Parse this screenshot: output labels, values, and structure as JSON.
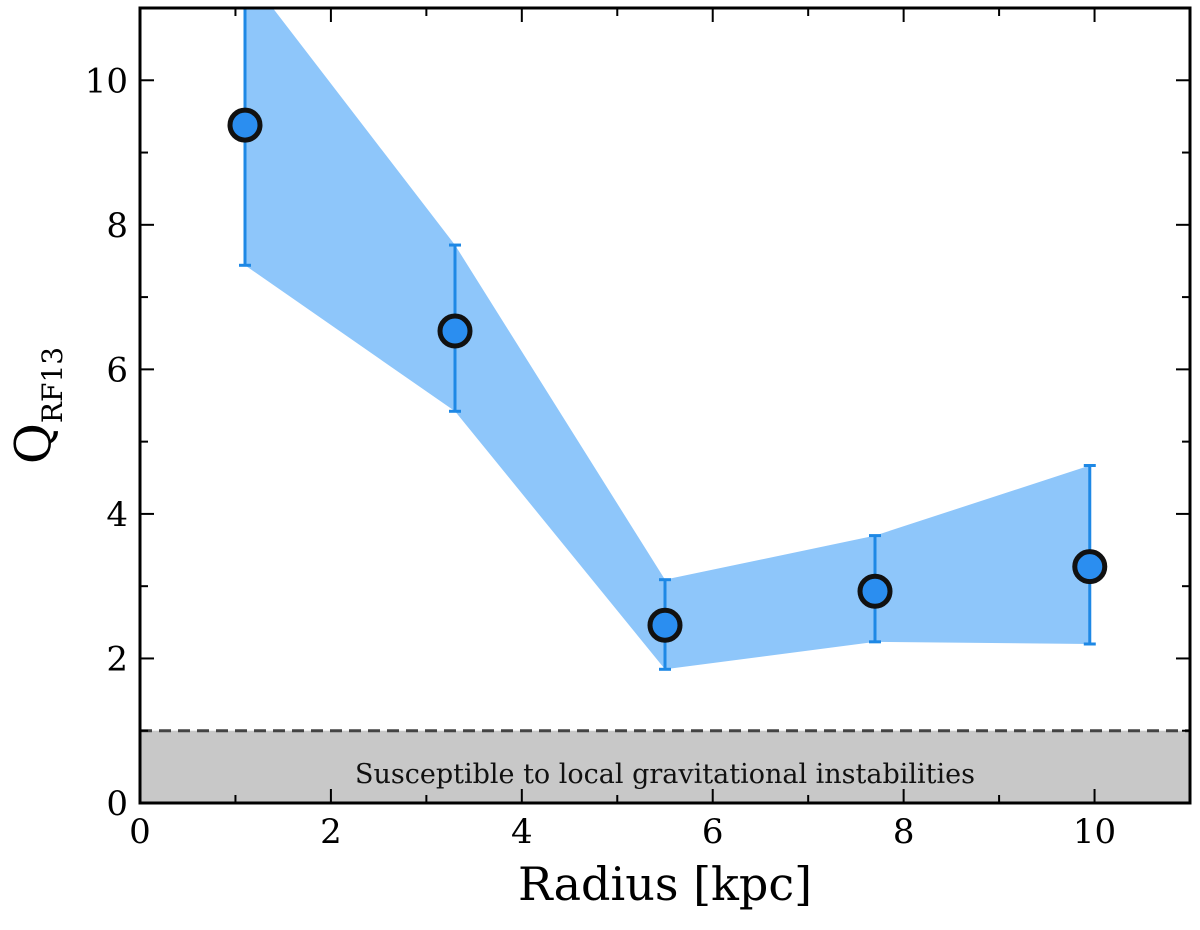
{
  "chart_data": {
    "type": "scatter",
    "title": "",
    "xlabel": "Radius [kpc]",
    "ylabel": "Q",
    "ylabel_subscript": "RF13",
    "xlim": [
      0,
      11
    ],
    "ylim": [
      0,
      11
    ],
    "xticks": [
      0,
      2,
      4,
      6,
      8,
      10
    ],
    "yticks": [
      0,
      2,
      4,
      6,
      8,
      10
    ],
    "xticks_minor": [
      1,
      3,
      5,
      7,
      9
    ],
    "yticks_minor": [
      1,
      3,
      5,
      7,
      9
    ],
    "grid": false,
    "series": [
      {
        "x": [
          1.1,
          3.3,
          5.5,
          7.7,
          9.95
        ],
        "y": [
          9.38,
          6.53,
          2.46,
          2.93,
          3.27
        ],
        "y_lower": [
          7.44,
          5.42,
          1.85,
          2.23,
          2.2
        ],
        "y_upper": [
          11.0,
          7.72,
          3.09,
          3.7,
          4.67
        ],
        "band_upper": [
          11.5,
          7.72,
          3.09,
          3.7,
          4.67
        ],
        "marker_color": "#2b8ef0",
        "marker_edge_color": "#111111",
        "errorbar_color": "#1e88e5",
        "band_color": "#8ec6fa"
      }
    ],
    "threshold": {
      "y": 1,
      "line_style": "dashed",
      "line_color": "#444444",
      "shade_color": "#c8c8c8",
      "label": "Susceptible to local gravitational instabilities"
    }
  }
}
